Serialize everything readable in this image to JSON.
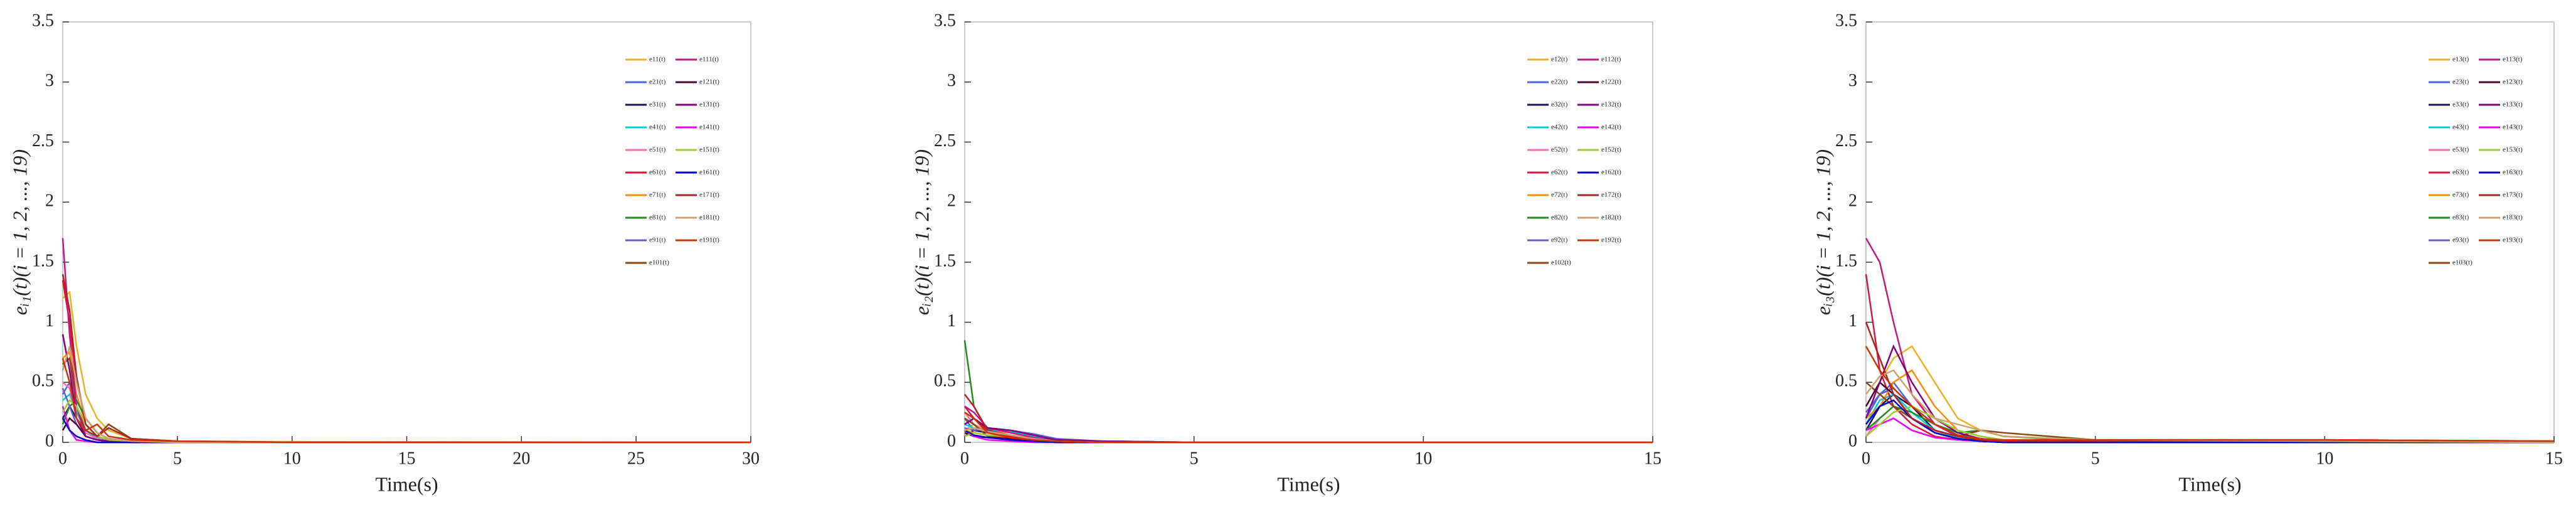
{
  "chart_data": [
    {
      "type": "line",
      "ylabel": "eᵢ₁(t)(i = 1, 2, ..., 19)",
      "xlabel": "Time(s)",
      "xlim": [
        0,
        30
      ],
      "xticks": [
        0,
        5,
        10,
        15,
        20,
        25,
        30
      ],
      "ylim": [
        0,
        3.5
      ],
      "yticks": [
        0,
        0.5,
        1,
        1.5,
        2,
        2.5,
        3,
        3.5
      ],
      "x": [
        0,
        0.3,
        0.6,
        1,
        1.5,
        2,
        3,
        5,
        10,
        30
      ],
      "series": [
        {
          "name": "e11(t)",
          "color": "#EDB120",
          "values": [
            1.2,
            1.25,
            0.8,
            0.4,
            0.2,
            0.1,
            0.03,
            0.01,
            0.005,
            0
          ]
        },
        {
          "name": "e21(t)",
          "color": "#4169E1",
          "values": [
            0.4,
            0.5,
            0.3,
            0.15,
            0.05,
            0.02,
            0.01,
            0,
            0,
            0
          ]
        },
        {
          "name": "e31(t)",
          "color": "#1A0F5E",
          "values": [
            0.2,
            0.3,
            0.2,
            0.1,
            0.04,
            0.02,
            0.01,
            0,
            0,
            0
          ]
        },
        {
          "name": "e41(t)",
          "color": "#00CED1",
          "values": [
            0.35,
            0.4,
            0.25,
            0.1,
            0.04,
            0.02,
            0.01,
            0,
            0,
            0
          ]
        },
        {
          "name": "e51(t)",
          "color": "#FF69B4",
          "values": [
            0.5,
            0.45,
            0.2,
            0.08,
            0.03,
            0.01,
            0,
            0,
            0,
            0
          ]
        },
        {
          "name": "e61(t)",
          "color": "#DC143C",
          "values": [
            1.35,
            1.0,
            0.5,
            0.2,
            0.08,
            0.03,
            0.01,
            0,
            0,
            0
          ]
        },
        {
          "name": "e71(t)",
          "color": "#FF8C00",
          "values": [
            0.7,
            0.75,
            0.4,
            0.15,
            0.05,
            0.02,
            0.01,
            0,
            0,
            0
          ]
        },
        {
          "name": "e81(t)",
          "color": "#228B22",
          "values": [
            0.15,
            0.3,
            0.35,
            0.2,
            0.08,
            0.03,
            0.01,
            0,
            0,
            0
          ]
        },
        {
          "name": "e91(t)",
          "color": "#6A5ACD",
          "values": [
            0.45,
            0.3,
            0.15,
            0.05,
            0.02,
            0.01,
            0,
            0,
            0,
            0
          ]
        },
        {
          "name": "e101(t)",
          "color": "#8B4513",
          "values": [
            0.65,
            0.7,
            0.3,
            0.1,
            0.05,
            0.15,
            0.03,
            0.01,
            0,
            0
          ]
        },
        {
          "name": "e111(t)",
          "color": "#C71585",
          "values": [
            1.7,
            0.9,
            0.3,
            0.05,
            0.02,
            0.01,
            0,
            0,
            0,
            0
          ]
        },
        {
          "name": "e121(t)",
          "color": "#4B0030",
          "values": [
            0.1,
            0.2,
            0.15,
            0.05,
            0.02,
            0.01,
            0,
            0,
            0,
            0
          ]
        },
        {
          "name": "e131(t)",
          "color": "#800080",
          "values": [
            0.9,
            0.6,
            0.2,
            0.05,
            0.02,
            0.01,
            0,
            0,
            0,
            0
          ]
        },
        {
          "name": "e141(t)",
          "color": "#EE00EE",
          "values": [
            0.3,
            0.1,
            0.02,
            0.01,
            0,
            0,
            0,
            0,
            0,
            0
          ]
        },
        {
          "name": "e151(t)",
          "color": "#9ACD32",
          "values": [
            0.25,
            0.35,
            0.3,
            0.15,
            0.05,
            0.02,
            0.01,
            0,
            0,
            0
          ]
        },
        {
          "name": "e161(t)",
          "color": "#0000CD",
          "values": [
            0.2,
            0.1,
            0.05,
            0.02,
            0,
            0,
            0,
            0,
            0,
            0
          ]
        },
        {
          "name": "e171(t)",
          "color": "#B22222",
          "values": [
            1.4,
            1.1,
            0.55,
            0.15,
            0.05,
            0.12,
            0.03,
            0.01,
            0,
            0
          ]
        },
        {
          "name": "e181(t)",
          "color": "#D2A070",
          "values": [
            0.6,
            0.8,
            0.5,
            0.2,
            0.08,
            0.03,
            0.01,
            0,
            0,
            0
          ]
        },
        {
          "name": "e191(t)",
          "color": "#CC3300",
          "values": [
            0.7,
            0.5,
            0.2,
            0.1,
            0.15,
            0.05,
            0.02,
            0.01,
            0,
            0
          ]
        }
      ]
    },
    {
      "type": "line",
      "ylabel": "eᵢ₂(t)(i = 1, 2, ..., 19)",
      "xlabel": "Time(s)",
      "xlim": [
        0,
        15
      ],
      "xticks": [
        0,
        5,
        10,
        15
      ],
      "ylim": [
        0,
        3.5
      ],
      "yticks": [
        0,
        0.5,
        1,
        1.5,
        2,
        2.5,
        3,
        3.5
      ],
      "x": [
        0,
        0.2,
        0.5,
        1,
        1.5,
        2,
        3,
        5,
        10,
        15
      ],
      "series": [
        {
          "name": "e12(t)",
          "color": "#EDB120",
          "values": [
            0.1,
            0.15,
            0.1,
            0.08,
            0.05,
            0.02,
            0.01,
            0,
            0,
            0
          ]
        },
        {
          "name": "e22(t)",
          "color": "#4169E1",
          "values": [
            0.2,
            0.1,
            0.12,
            0.1,
            0.06,
            0.02,
            0.01,
            0,
            0,
            0
          ]
        },
        {
          "name": "e32(t)",
          "color": "#1A0F5E",
          "values": [
            0.05,
            0.1,
            0.08,
            0.05,
            0.03,
            0.01,
            0,
            0,
            0,
            0
          ]
        },
        {
          "name": "e42(t)",
          "color": "#00CED1",
          "values": [
            0.15,
            0.12,
            0.1,
            0.09,
            0.05,
            0.02,
            0.01,
            0,
            0,
            0
          ]
        },
        {
          "name": "e52(t)",
          "color": "#FF69B4",
          "values": [
            0.25,
            0.15,
            0.08,
            0.05,
            0.02,
            0.01,
            0,
            0,
            0,
            0
          ]
        },
        {
          "name": "e62(t)",
          "color": "#DC143C",
          "values": [
            0.3,
            0.2,
            0.1,
            0.06,
            0.03,
            0.01,
            0,
            0,
            0,
            0
          ]
        },
        {
          "name": "e72(t)",
          "color": "#FF8C00",
          "values": [
            0.1,
            0.08,
            0.06,
            0.04,
            0.02,
            0.01,
            0,
            0,
            0,
            0
          ]
        },
        {
          "name": "e82(t)",
          "color": "#228B22",
          "values": [
            0.85,
            0.3,
            0.1,
            0.05,
            0.02,
            0.01,
            0,
            0,
            0,
            0
          ]
        },
        {
          "name": "e92(t)",
          "color": "#6A5ACD",
          "values": [
            0.12,
            0.1,
            0.11,
            0.1,
            0.07,
            0.03,
            0.01,
            0,
            0,
            0
          ]
        },
        {
          "name": "e102(t)",
          "color": "#8B4513",
          "values": [
            0.2,
            0.15,
            0.05,
            0.03,
            0.01,
            0,
            0,
            0,
            0,
            0
          ]
        },
        {
          "name": "e112(t)",
          "color": "#C71585",
          "values": [
            0.3,
            0.25,
            0.12,
            0.08,
            0.04,
            0.01,
            0,
            0,
            0,
            0
          ]
        },
        {
          "name": "e122(t)",
          "color": "#4B0030",
          "values": [
            0.08,
            0.05,
            0.04,
            0.03,
            0.01,
            0,
            0,
            0,
            0,
            0
          ]
        },
        {
          "name": "e132(t)",
          "color": "#800080",
          "values": [
            0.15,
            0.2,
            0.12,
            0.1,
            0.06,
            0.02,
            0.01,
            0,
            0,
            0
          ]
        },
        {
          "name": "e142(t)",
          "color": "#EE00EE",
          "values": [
            0.1,
            0.05,
            0.02,
            0.01,
            0,
            0,
            0,
            0,
            0,
            0
          ]
        },
        {
          "name": "e152(t)",
          "color": "#9ACD32",
          "values": [
            0.05,
            0.08,
            0.06,
            0.05,
            0.03,
            0.01,
            0,
            0,
            0,
            0
          ]
        },
        {
          "name": "e162(t)",
          "color": "#0000CD",
          "values": [
            0.1,
            0.06,
            0.04,
            0.02,
            0.01,
            0,
            0,
            0,
            0,
            0
          ]
        },
        {
          "name": "e172(t)",
          "color": "#B22222",
          "values": [
            0.4,
            0.3,
            0.1,
            0.05,
            0.02,
            0.01,
            0,
            0,
            0,
            0
          ]
        },
        {
          "name": "e182(t)",
          "color": "#D2A070",
          "values": [
            0.1,
            0.12,
            0.09,
            0.06,
            0.03,
            0.01,
            0,
            0,
            0,
            0
          ]
        },
        {
          "name": "e192(t)",
          "color": "#CC3300",
          "values": [
            0.25,
            0.2,
            0.08,
            0.04,
            0.02,
            0.01,
            0,
            0,
            0,
            0
          ]
        }
      ]
    },
    {
      "type": "line",
      "ylabel": "eᵢ₃(t)(i = 1, 2, ..., 19)",
      "xlabel": "Time(s)",
      "xlim": [
        0,
        15
      ],
      "xticks": [
        0,
        5,
        10,
        15
      ],
      "ylim": [
        0,
        3.5
      ],
      "yticks": [
        0,
        0.5,
        1,
        1.5,
        2,
        2.5,
        3,
        3.5
      ],
      "x": [
        0,
        0.3,
        0.6,
        1,
        1.5,
        2,
        2.5,
        3,
        5,
        10,
        15
      ],
      "series": [
        {
          "name": "e13(t)",
          "color": "#EDB120",
          "values": [
            0.3,
            0.5,
            0.7,
            0.8,
            0.5,
            0.2,
            0.1,
            0.05,
            0.01,
            0,
            0
          ]
        },
        {
          "name": "e23(t)",
          "color": "#4169E1",
          "values": [
            0.2,
            0.4,
            0.5,
            0.3,
            0.15,
            0.05,
            0.02,
            0.01,
            0,
            0,
            0
          ]
        },
        {
          "name": "e33(t)",
          "color": "#1A0F5E",
          "values": [
            0.1,
            0.3,
            0.4,
            0.3,
            0.1,
            0.04,
            0.02,
            0.01,
            0,
            0,
            0
          ]
        },
        {
          "name": "e43(t)",
          "color": "#00CED1",
          "values": [
            0.15,
            0.35,
            0.4,
            0.25,
            0.1,
            0.04,
            0.02,
            0.01,
            0,
            0,
            0
          ]
        },
        {
          "name": "e53(t)",
          "color": "#FF69B4",
          "values": [
            0.05,
            0.2,
            0.3,
            0.2,
            0.08,
            0.03,
            0.01,
            0,
            0,
            0,
            0
          ]
        },
        {
          "name": "e63(t)",
          "color": "#DC143C",
          "values": [
            1.4,
            0.6,
            0.3,
            0.15,
            0.05,
            0.02,
            0.01,
            0,
            0,
            0,
            0
          ]
        },
        {
          "name": "e73(t)",
          "color": "#FF8C00",
          "values": [
            0.2,
            0.3,
            0.5,
            0.6,
            0.3,
            0.1,
            0.05,
            0.02,
            0.01,
            0,
            0
          ]
        },
        {
          "name": "e83(t)",
          "color": "#228B22",
          "values": [
            0.1,
            0.2,
            0.3,
            0.25,
            0.15,
            0.08,
            0.1,
            0.05,
            0.01,
            0,
            0
          ]
        },
        {
          "name": "e93(t)",
          "color": "#6A5ACD",
          "values": [
            0.25,
            0.4,
            0.45,
            0.3,
            0.15,
            0.06,
            0.03,
            0.01,
            0,
            0,
            0
          ]
        },
        {
          "name": "e103(t)",
          "color": "#8B4513",
          "values": [
            0.5,
            0.4,
            0.3,
            0.2,
            0.1,
            0.05,
            0.1,
            0.08,
            0.02,
            0.02,
            0.01
          ]
        },
        {
          "name": "e113(t)",
          "color": "#C71585",
          "values": [
            1.7,
            1.5,
            1.0,
            0.4,
            0.15,
            0.05,
            0.02,
            0.01,
            0,
            0,
            0
          ]
        },
        {
          "name": "e123(t)",
          "color": "#4B0030",
          "values": [
            0.3,
            0.5,
            0.4,
            0.2,
            0.08,
            0.03,
            0.01,
            0,
            0,
            0,
            0
          ]
        },
        {
          "name": "e133(t)",
          "color": "#800080",
          "values": [
            0.2,
            0.5,
            0.8,
            0.5,
            0.2,
            0.08,
            0.03,
            0.01,
            0,
            0,
            0
          ]
        },
        {
          "name": "e143(t)",
          "color": "#EE00EE",
          "values": [
            0.1,
            0.15,
            0.2,
            0.1,
            0.04,
            0.02,
            0.01,
            0,
            0,
            0,
            0
          ]
        },
        {
          "name": "e153(t)",
          "color": "#9ACD32",
          "values": [
            0.05,
            0.15,
            0.25,
            0.3,
            0.2,
            0.1,
            0.05,
            0.02,
            0.01,
            0,
            0
          ]
        },
        {
          "name": "e163(t)",
          "color": "#0000CD",
          "values": [
            0.15,
            0.3,
            0.35,
            0.2,
            0.08,
            0.03,
            0.01,
            0,
            0,
            0,
            0
          ]
        },
        {
          "name": "e173(t)",
          "color": "#B22222",
          "values": [
            1.0,
            0.7,
            0.4,
            0.2,
            0.1,
            0.05,
            0.02,
            0.01,
            0.01,
            0.02,
            0.01
          ]
        },
        {
          "name": "e183(t)",
          "color": "#D2A070",
          "values": [
            0.4,
            0.55,
            0.6,
            0.4,
            0.2,
            0.15,
            0.1,
            0.05,
            0.02,
            0.01,
            0
          ]
        },
        {
          "name": "e193(t)",
          "color": "#CC3300",
          "values": [
            0.8,
            0.6,
            0.45,
            0.3,
            0.15,
            0.06,
            0.03,
            0.02,
            0.02,
            0.02,
            0.01
          ]
        }
      ]
    }
  ]
}
